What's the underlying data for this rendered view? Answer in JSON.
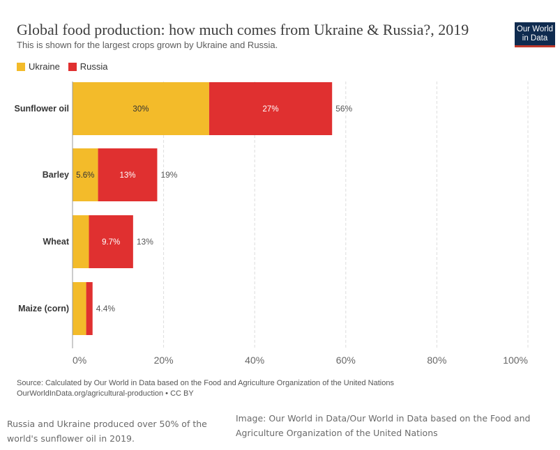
{
  "header": {
    "title": "Global food production: how much comes from Ukraine & Russia?, 2019",
    "subtitle": "This is shown for the largest crops grown by Ukraine and Russia.",
    "logo_line1": "Our World",
    "logo_line2": "in Data"
  },
  "colors": {
    "ukraine": "#f3bb2a",
    "russia": "#e03030",
    "logo_bg": "#0f2b4f",
    "grid": "#dddddd"
  },
  "chart_data": {
    "type": "bar",
    "orientation": "horizontal",
    "stacked": true,
    "categories": [
      "Sunflower oil",
      "Barley",
      "Wheat",
      "Maize (corn)"
    ],
    "series": [
      {
        "name": "Ukraine",
        "values": [
          30,
          5.6,
          3.6,
          3.0
        ],
        "labels": [
          "30%",
          "5.6%",
          "",
          ""
        ]
      },
      {
        "name": "Russia",
        "values": [
          27,
          13,
          9.7,
          1.4
        ],
        "labels": [
          "27%",
          "13%",
          "9.7%",
          ""
        ]
      }
    ],
    "totals": [
      "56%",
      "19%",
      "13%",
      "4.4%"
    ],
    "xlim": [
      0,
      100
    ],
    "x_ticks": [
      0,
      20,
      40,
      60,
      80,
      100
    ],
    "x_tick_labels": [
      "0%",
      "20%",
      "40%",
      "60%",
      "80%",
      "100%"
    ],
    "grid": true,
    "legend_position": "top-left"
  },
  "footer": {
    "source_line1": "Source: Calculated by Our World in Data based on the Food and Agriculture Organization of the United Nations",
    "source_line2": "OurWorldInData.org/agricultural-production • CC BY"
  },
  "captions": {
    "left": "Russia and Ukraine produced over 50% of the world's sunflower oil in 2019.",
    "right": "Image: Our World in Data/Our World in Data based on the Food and Agriculture Organization of the United Nations"
  }
}
